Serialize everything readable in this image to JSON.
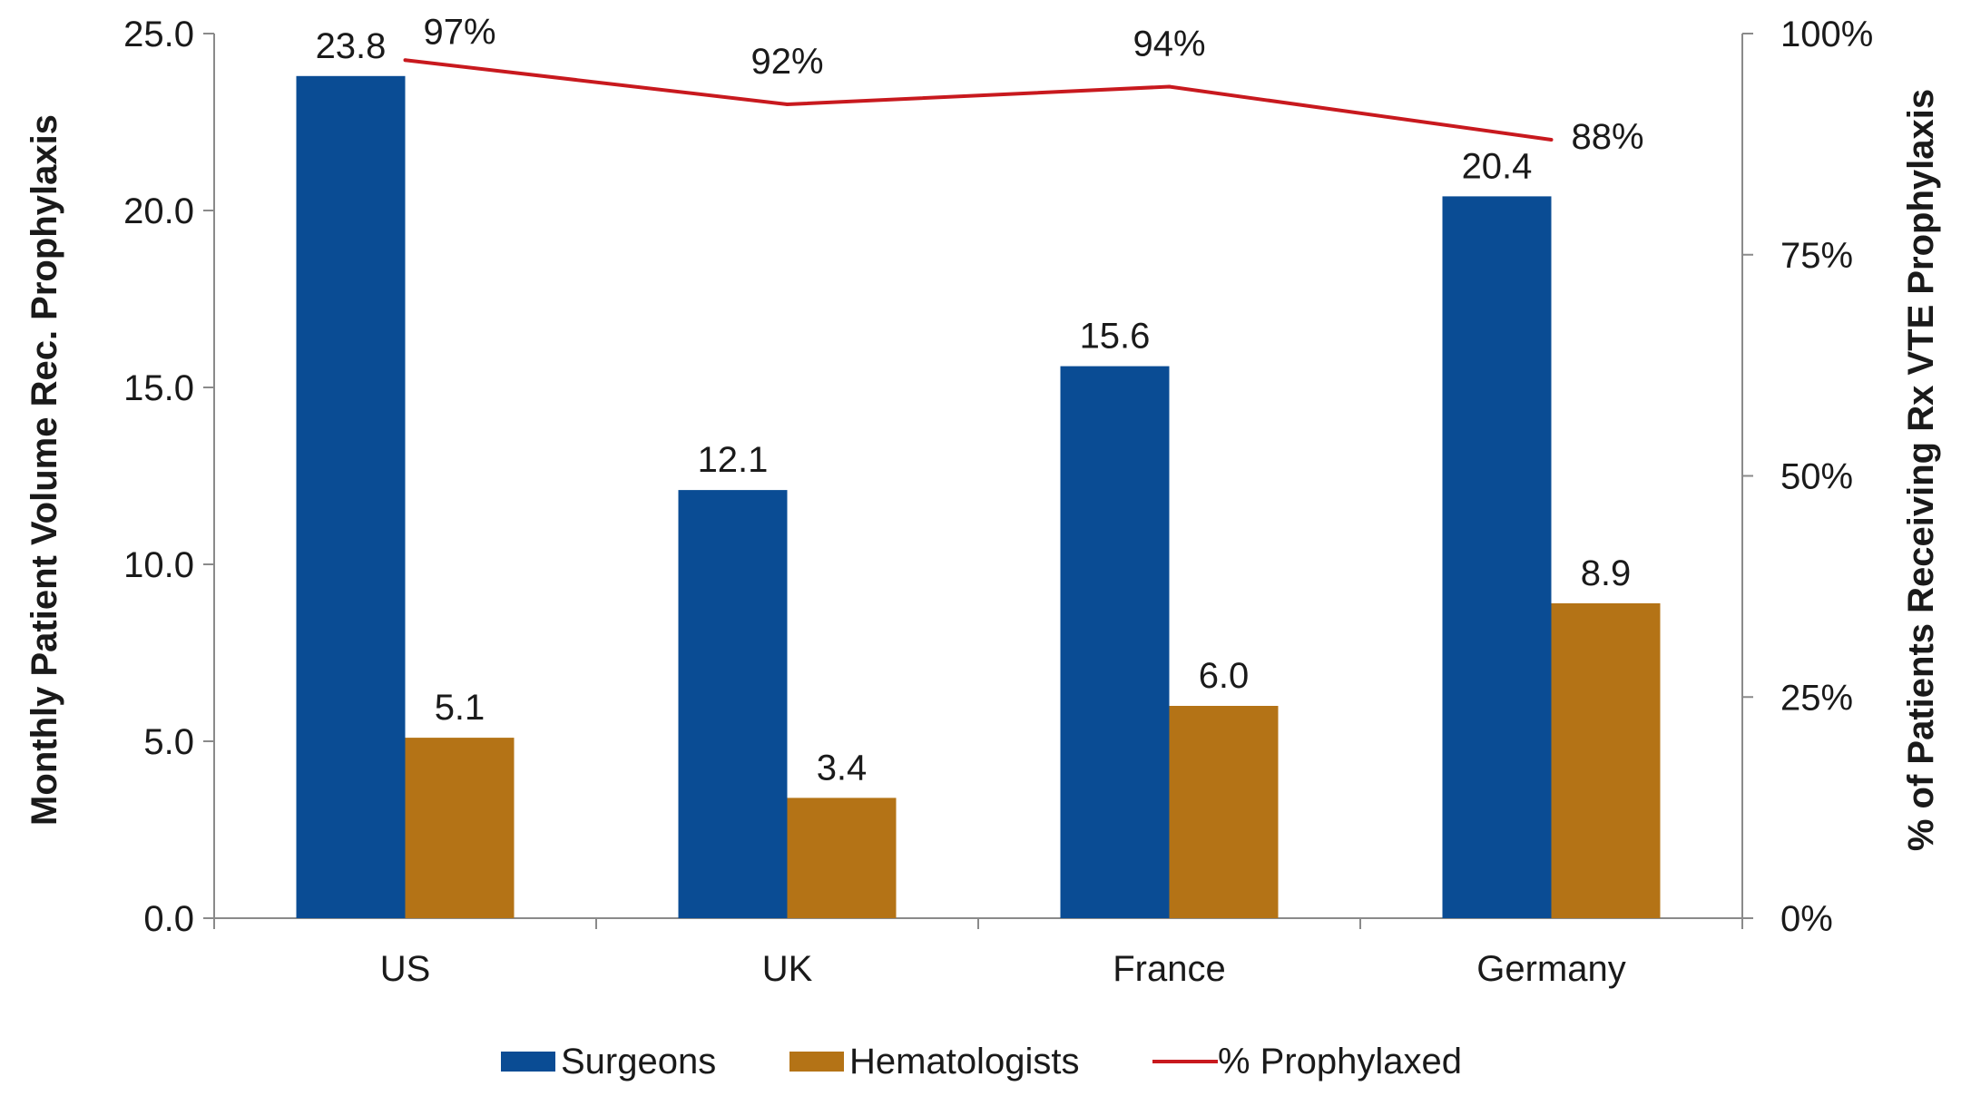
{
  "chart_data": {
    "type": "bar",
    "categories": [
      "US",
      "UK",
      "France",
      "Germany"
    ],
    "series": [
      {
        "name": "Surgeons",
        "kind": "bar",
        "axis": "left",
        "color": "#0a4c94",
        "values": [
          23.8,
          12.1,
          15.6,
          20.4
        ],
        "labels": [
          "23.8",
          "12.1",
          "15.6",
          "20.4"
        ]
      },
      {
        "name": "Hematologists",
        "kind": "bar",
        "axis": "left",
        "color": "#b47316",
        "values": [
          5.1,
          3.4,
          6.0,
          8.9
        ],
        "labels": [
          "5.1",
          "3.4",
          "6.0",
          "8.9"
        ]
      },
      {
        "name": "% Prophylaxed",
        "kind": "line",
        "axis": "right",
        "color": "#c8191e",
        "values": [
          97,
          92,
          94,
          88
        ],
        "labels": [
          "97%",
          "92%",
          "94%",
          "88%"
        ]
      }
    ],
    "y_left": {
      "label": "Monthly Patient Volume Rec. Prophylaxis",
      "ylim": [
        0,
        25
      ],
      "ticks": [
        0,
        5,
        10,
        15,
        20,
        25
      ],
      "tick_labels": [
        "0.0",
        "5.0",
        "10.0",
        "15.0",
        "20.0",
        "25.0"
      ]
    },
    "y_right": {
      "label": "% of Patients Receiving Rx VTE Prophylaxis",
      "ylim": [
        0,
        100
      ],
      "ticks": [
        0,
        25,
        50,
        75,
        100
      ],
      "tick_labels": [
        "0%",
        "25%",
        "50%",
        "75%",
        "100%"
      ]
    },
    "grid": false,
    "legend": "bottom"
  }
}
